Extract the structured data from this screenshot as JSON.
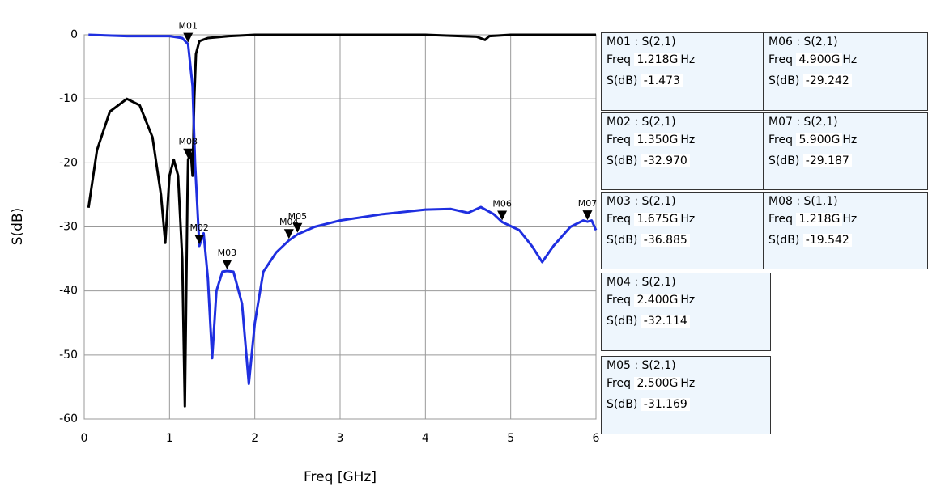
{
  "chart_data": {
    "type": "line",
    "xlabel": "Freq [GHz]",
    "ylabel": "S(dB)",
    "xlim": [
      0,
      6
    ],
    "xticks": [
      0,
      1,
      2,
      3,
      4,
      5,
      6
    ],
    "ylim": [
      -60,
      0
    ],
    "yticks": [
      -60,
      -50,
      -40,
      -30,
      -20,
      -10,
      0
    ],
    "grid": true,
    "series": [
      {
        "color": "#000000",
        "x": [
          0.05,
          0.15,
          0.3,
          0.5,
          0.65,
          0.8,
          0.9,
          0.95,
          1.0,
          1.05,
          1.1,
          1.15,
          1.18,
          1.21,
          1.218,
          1.25,
          1.27,
          1.29,
          1.31,
          1.35,
          1.45,
          1.7,
          2.0,
          3.0,
          4.0,
          4.6,
          4.7,
          4.75,
          5.0,
          6.0
        ],
        "values": [
          -27,
          -18,
          -12,
          -10,
          -11,
          -16,
          -25,
          -32.5,
          -22,
          -19.5,
          -22,
          -35,
          -58,
          -25,
          -19.5,
          -18.5,
          -22,
          -10,
          -3,
          -1,
          -0.5,
          -0.2,
          0,
          0,
          0,
          -0.3,
          -0.8,
          -0.2,
          0,
          0
        ]
      },
      {
        "color": "#1f2fe0",
        "x": [
          0.05,
          0.5,
          1.0,
          1.15,
          1.218,
          1.27,
          1.3,
          1.35,
          1.4,
          1.45,
          1.5,
          1.55,
          1.62,
          1.675,
          1.75,
          1.85,
          1.93,
          2.0,
          2.1,
          2.25,
          2.4,
          2.5,
          2.7,
          3.0,
          3.5,
          4.0,
          4.3,
          4.5,
          4.65,
          4.8,
          4.9,
          5.1,
          5.25,
          5.37,
          5.5,
          5.7,
          5.85,
          5.9,
          5.95,
          6.0
        ],
        "values": [
          0,
          -0.2,
          -0.2,
          -0.5,
          -1.473,
          -8,
          -20,
          -32.97,
          -31,
          -38,
          -50.5,
          -40,
          -37,
          -36.885,
          -37,
          -42,
          -54.5,
          -45,
          -37,
          -34,
          -32.114,
          -31.169,
          -30,
          -29,
          -28,
          -27.3,
          -27.2,
          -27.8,
          -26.9,
          -28,
          -29.242,
          -30.5,
          -33,
          -35.5,
          -33,
          -30,
          -29,
          -29.187,
          -29,
          -30.5
        ]
      }
    ],
    "marker_text": {
      "sep": ":",
      "freq": "Freq",
      "unit": "Hz",
      "sdb": "S(dB)"
    },
    "markers": [
      {
        "name": "M01",
        "param": "S(2,1)",
        "freq": 1.218,
        "freq_label": "1.218G",
        "sdb": -1.473
      },
      {
        "name": "M02",
        "param": "S(2,1)",
        "freq": 1.35,
        "freq_label": "1.350G",
        "sdb": -32.97,
        "sdb_label": "-32.970"
      },
      {
        "name": "M03",
        "param": "S(2,1)",
        "freq": 1.675,
        "freq_label": "1.675G",
        "sdb": -36.885
      },
      {
        "name": "M04",
        "param": "S(2,1)",
        "freq": 2.4,
        "freq_label": "2.400G",
        "sdb": -32.114
      },
      {
        "name": "M05",
        "param": "S(2,1)",
        "freq": 2.5,
        "freq_label": "2.500G",
        "sdb": -31.169
      },
      {
        "name": "M06",
        "param": "S(2,1)",
        "freq": 4.9,
        "freq_label": "4.900G",
        "sdb": -29.242
      },
      {
        "name": "M07",
        "param": "S(2,1)",
        "freq": 5.9,
        "freq_label": "5.900G",
        "sdb": -29.187
      },
      {
        "name": "M08",
        "param": "S(1,1)",
        "freq": 1.218,
        "freq_label": "1.218G",
        "sdb": -19.542
      }
    ]
  }
}
